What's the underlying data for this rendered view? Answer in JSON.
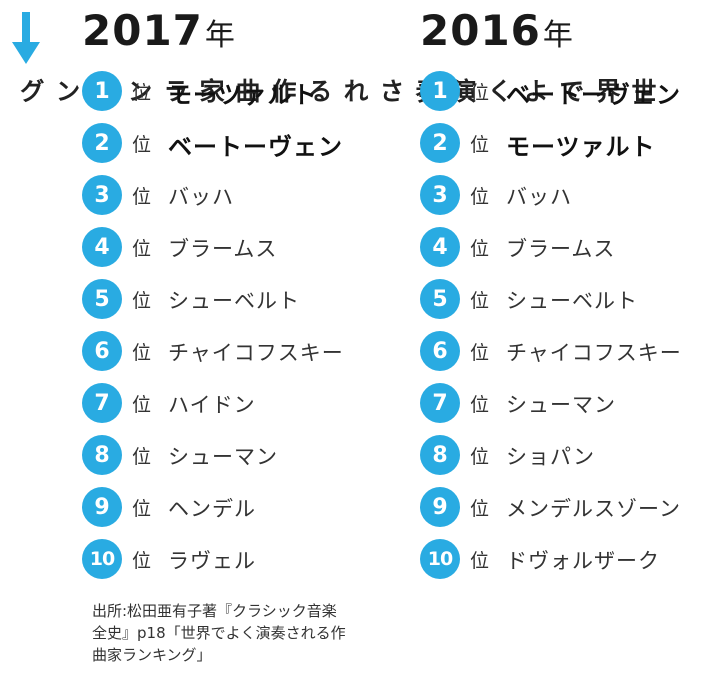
{
  "side_title": "世界でよく演奏される作曲家ランキング",
  "accent_color": "#29abe2",
  "rank_suffix": "位",
  "columns": [
    {
      "year": "2017",
      "year_unit": "年",
      "entries": [
        {
          "rank": "1",
          "name": "モーツァルト"
        },
        {
          "rank": "2",
          "name": "ベートーヴェン"
        },
        {
          "rank": "3",
          "name": "バッハ"
        },
        {
          "rank": "4",
          "name": "ブラームス"
        },
        {
          "rank": "5",
          "name": "シューベルト"
        },
        {
          "rank": "6",
          "name": "チャイコフスキー"
        },
        {
          "rank": "7",
          "name": "ハイドン"
        },
        {
          "rank": "8",
          "name": "シューマン"
        },
        {
          "rank": "9",
          "name": "ヘンデル"
        },
        {
          "rank": "10",
          "name": "ラヴェル"
        }
      ]
    },
    {
      "year": "2016",
      "year_unit": "年",
      "entries": [
        {
          "rank": "1",
          "name": "ベートーヴェン"
        },
        {
          "rank": "2",
          "name": "モーツァルト"
        },
        {
          "rank": "3",
          "name": "バッハ"
        },
        {
          "rank": "4",
          "name": "ブラームス"
        },
        {
          "rank": "5",
          "name": "シューベルト"
        },
        {
          "rank": "6",
          "name": "チャイコフスキー"
        },
        {
          "rank": "7",
          "name": "シューマン"
        },
        {
          "rank": "8",
          "name": "ショパン"
        },
        {
          "rank": "9",
          "name": "メンデルスゾーン"
        },
        {
          "rank": "10",
          "name": "ドヴォルザーク"
        }
      ]
    }
  ],
  "source_lines": [
    "出所:松田亜有子著『クラシック音楽",
    "全史』p18「世界でよく演奏される作",
    "曲家ランキング」"
  ]
}
